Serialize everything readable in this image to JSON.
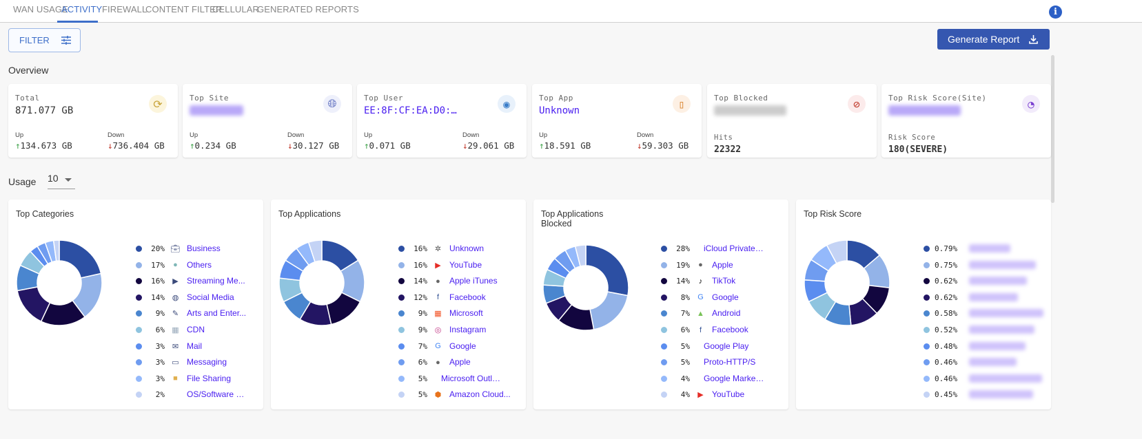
{
  "tabs": [
    {
      "label": "WAN USAGE"
    },
    {
      "label": "ACTIVITY",
      "active": true
    },
    {
      "label": "FIREWALL"
    },
    {
      "label": "CONTENT FILTER"
    },
    {
      "label": "CELLULAR"
    },
    {
      "label": "GENERATED REPORTS"
    }
  ],
  "info_icon": "info-icon",
  "toolbar": {
    "filter_label": "FILTER",
    "generate_label": "Generate Report"
  },
  "overview": {
    "title": "Overview",
    "cards": [
      {
        "label": "Total",
        "value": "871.077 GB",
        "icon": "sync-check-icon",
        "up_label": "Up",
        "up": "134.673 GB",
        "down_label": "Down",
        "down": "736.404 GB"
      },
      {
        "label": "Top Site",
        "icon": "globe-icon",
        "up_label": "Up",
        "up": "0.234 GB",
        "down_label": "Down",
        "down": "30.127 GB"
      },
      {
        "label": "Top User",
        "value": "EE:8F:CF:EA:D0:…",
        "icon": "user-circle-icon",
        "up_label": "Up",
        "up": "0.071 GB",
        "down_label": "Down",
        "down": "29.061 GB"
      },
      {
        "label": "Top App",
        "value": "Unknown",
        "icon": "app-icon",
        "up_label": "Up",
        "up": "18.591 GB",
        "down_label": "Down",
        "down": "59.303 GB"
      },
      {
        "label": "Top Blocked",
        "icon": "block-icon",
        "hits_label": "Hits",
        "hits": "22322"
      },
      {
        "label": "Top Risk Score(Site)",
        "icon": "gauge-icon",
        "risk_label": "Risk Score",
        "risk": "180(SEVERE)"
      }
    ]
  },
  "usage": {
    "label": "Usage",
    "select_value": "10"
  },
  "palette": [
    "#2c4fa3",
    "#93b3e8",
    "#12063f",
    "#231563",
    "#4a86cf",
    "#8fc4df",
    "#5b8def",
    "#6f9cf0",
    "#94b9fb",
    "#c4d3f5"
  ],
  "chart_data": [
    {
      "type": "pie",
      "title": "Top Categories",
      "categories": [
        "Business",
        "Others",
        "Streaming Me...",
        "Social Media",
        "Arts and Enter...",
        "CDN",
        "Mail",
        "Messaging",
        "File Sharing",
        "OS/Software U..."
      ],
      "values": [
        20,
        17,
        16,
        14,
        9,
        6,
        3,
        3,
        3,
        2
      ],
      "labels": [
        "20%",
        "17%",
        "16%",
        "14%",
        "9%",
        "6%",
        "3%",
        "3%",
        "3%",
        "2%"
      ],
      "icons": [
        "briefcase-icon",
        "others-icon",
        "streaming-icon",
        "globe-icon",
        "arts-icon",
        "cdn-icon",
        "mail-icon",
        "message-icon",
        "folder-icon",
        ""
      ]
    },
    {
      "type": "pie",
      "title": "Top Applications",
      "categories": [
        "Unknown",
        "YouTube",
        "Apple iTunes",
        "Facebook",
        "Microsoft",
        "Instagram",
        "Google",
        "Apple",
        "Microsoft Outlo...",
        "Amazon Cloud..."
      ],
      "values": [
        16,
        16,
        14,
        12,
        9,
        9,
        7,
        6,
        5,
        5
      ],
      "labels": [
        "16%",
        "16%",
        "14%",
        "12%",
        "9%",
        "9%",
        "7%",
        "6%",
        "5%",
        "5%"
      ],
      "icons": [
        "chip-icon",
        "youtube-icon",
        "apple-icon",
        "facebook-icon",
        "microsoft-icon",
        "instagram-icon",
        "google-icon",
        "apple-icon",
        "",
        "aws-icon"
      ]
    },
    {
      "type": "pie",
      "title": "Top Applications Blocked",
      "categories": [
        "iCloud Private R...",
        "Apple",
        "TikTok",
        "Google",
        "Android",
        "Facebook",
        "Google Play",
        "Proto-HTTP/S",
        "Google Marketi...",
        "YouTube"
      ],
      "values": [
        28,
        19,
        14,
        8,
        7,
        6,
        5,
        5,
        4,
        4
      ],
      "labels": [
        "28%",
        "19%",
        "14%",
        "8%",
        "7%",
        "6%",
        "5%",
        "5%",
        "4%",
        "4%"
      ],
      "icons": [
        "",
        "apple-icon",
        "tiktok-icon",
        "google-icon",
        "android-icon",
        "facebook-icon",
        "",
        "",
        "",
        "youtube-icon"
      ]
    },
    {
      "type": "pie",
      "title": "Top Risk Score",
      "values": [
        0.79,
        0.75,
        0.62,
        0.62,
        0.58,
        0.52,
        0.48,
        0.46,
        0.46,
        0.45
      ],
      "labels": [
        "0.79%",
        "0.75%",
        "0.62%",
        "0.62%",
        "0.58%",
        "0.52%",
        "0.48%",
        "0.46%",
        "0.46%",
        "0.45%"
      ]
    }
  ]
}
